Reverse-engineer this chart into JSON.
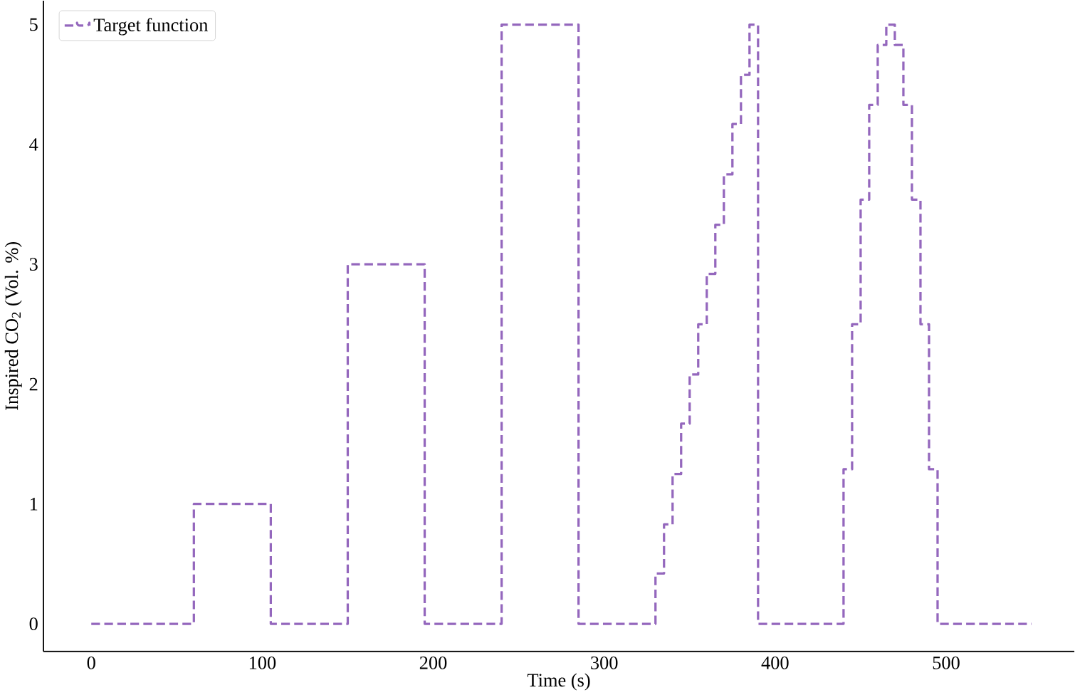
{
  "chart_data": {
    "type": "step",
    "xlabel": "Time (s)",
    "ylabel": "Inspired CO$_{2}$ (Vol. %)",
    "legend": "top left",
    "grid": false,
    "line_style": "dashed",
    "marker": "none",
    "xlim": [
      -28,
      575
    ],
    "ylim": [
      -0.23,
      5.2
    ],
    "xticks": [
      0,
      100,
      200,
      300,
      400,
      500
    ],
    "yticks": [
      0,
      1,
      2,
      3,
      4,
      5
    ],
    "series": [
      {
        "name": "Target function",
        "color": "#9467bd",
        "x": [
          0,
          60,
          105,
          150,
          195,
          240,
          285,
          330,
          335,
          340,
          345,
          350,
          355,
          360,
          365,
          370,
          375,
          380,
          385,
          390,
          440,
          445,
          450,
          455,
          460,
          465,
          470,
          475,
          480,
          485,
          490,
          495,
          550
        ],
        "values": [
          0,
          1,
          0,
          3,
          0,
          5,
          0,
          0.42,
          0.83,
          1.25,
          1.67,
          2.08,
          2.5,
          2.92,
          3.33,
          3.75,
          4.17,
          4.58,
          5,
          0,
          1.29,
          2.5,
          3.54,
          4.33,
          4.83,
          5,
          4.83,
          4.33,
          3.54,
          2.5,
          1.29,
          0,
          0
        ]
      }
    ]
  }
}
